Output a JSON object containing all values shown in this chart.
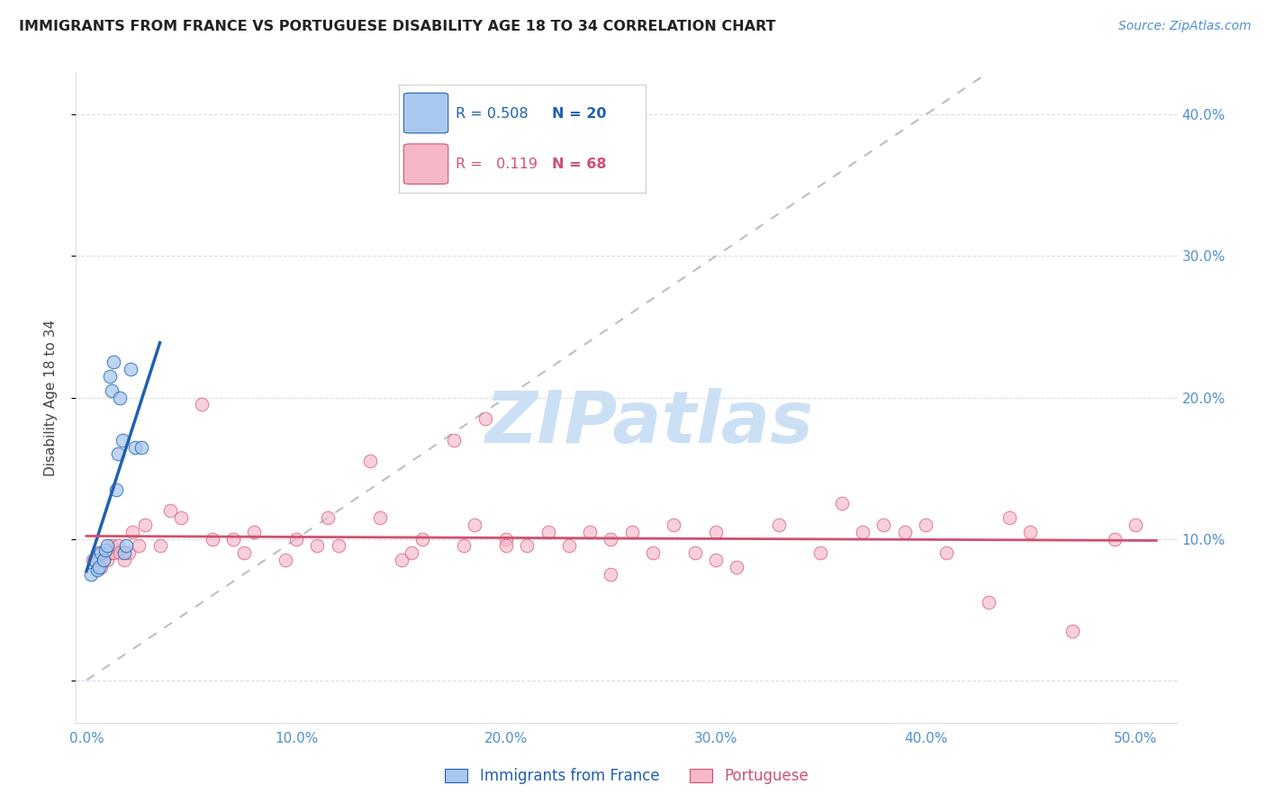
{
  "title": "IMMIGRANTS FROM FRANCE VS PORTUGUESE DISABILITY AGE 18 TO 34 CORRELATION CHART",
  "source": "Source: ZipAtlas.com",
  "ylabel_left": "Disability Age 18 to 34",
  "x_tick_labels": [
    "0.0%",
    "10.0%",
    "20.0%",
    "30.0%",
    "40.0%",
    "50.0%"
  ],
  "x_ticks": [
    0,
    10,
    20,
    30,
    40,
    50
  ],
  "y_ticks": [
    0,
    10,
    20,
    30,
    40
  ],
  "y_tick_labels_right": [
    "",
    "10.0%",
    "20.0%",
    "30.0%",
    "40.0%"
  ],
  "xlim": [
    -0.5,
    52
  ],
  "ylim": [
    -3,
    43
  ],
  "legend_label1": "Immigrants from France",
  "legend_label2": "Portuguese",
  "R1": "0.508",
  "N1": "20",
  "R2": "0.119",
  "N2": "68",
  "color_blue": "#a8c8f0",
  "color_pink": "#f5b8c8",
  "color_blue_line": "#2060b0",
  "color_pink_line": "#d05070",
  "color_diag": "#b0b8c8",
  "blue_x": [
    0.2,
    0.4,
    0.5,
    0.6,
    0.7,
    0.8,
    0.9,
    1.0,
    1.1,
    1.2,
    1.3,
    1.4,
    1.5,
    1.6,
    1.7,
    1.8,
    1.9,
    2.1,
    2.3,
    2.6
  ],
  "blue_y": [
    7.5,
    8.5,
    7.8,
    8.0,
    9.0,
    8.5,
    9.2,
    9.5,
    21.5,
    20.5,
    22.5,
    13.5,
    16.0,
    20.0,
    17.0,
    9.0,
    9.5,
    22.0,
    16.5,
    16.5
  ],
  "pink_x": [
    0.3,
    0.5,
    0.6,
    0.7,
    0.8,
    0.9,
    1.0,
    1.1,
    1.2,
    1.3,
    1.5,
    1.6,
    1.8,
    2.0,
    2.2,
    2.5,
    2.8,
    3.5,
    4.0,
    4.5,
    5.5,
    6.0,
    7.0,
    7.5,
    8.0,
    9.5,
    10.0,
    11.0,
    11.5,
    12.0,
    13.5,
    14.0,
    15.0,
    15.5,
    16.0,
    17.5,
    18.0,
    18.5,
    19.0,
    20.0,
    21.0,
    22.0,
    23.0,
    24.0,
    25.0,
    26.0,
    27.0,
    28.0,
    29.0,
    30.0,
    31.0,
    33.0,
    35.0,
    36.0,
    37.0,
    38.0,
    39.0,
    40.0,
    41.0,
    43.0,
    44.0,
    45.0,
    47.0,
    49.0,
    50.0,
    20.0,
    25.0,
    30.0
  ],
  "pink_y": [
    8.5,
    9.0,
    8.5,
    8.0,
    8.5,
    9.0,
    8.5,
    9.0,
    9.5,
    9.0,
    9.5,
    9.0,
    8.5,
    9.0,
    10.5,
    9.5,
    11.0,
    9.5,
    12.0,
    11.5,
    19.5,
    10.0,
    10.0,
    9.0,
    10.5,
    8.5,
    10.0,
    9.5,
    11.5,
    9.5,
    15.5,
    11.5,
    8.5,
    9.0,
    10.0,
    17.0,
    9.5,
    11.0,
    18.5,
    10.0,
    9.5,
    10.5,
    9.5,
    10.5,
    10.0,
    10.5,
    9.0,
    11.0,
    9.0,
    10.5,
    8.0,
    11.0,
    9.0,
    12.5,
    10.5,
    11.0,
    10.5,
    11.0,
    9.0,
    5.5,
    11.5,
    10.5,
    3.5,
    10.0,
    11.0,
    9.5,
    7.5,
    8.5
  ],
  "background_color": "#ffffff",
  "grid_color": "#d8dde8",
  "watermark_text": "ZIPatlas",
  "watermark_color": "#cce0f5"
}
